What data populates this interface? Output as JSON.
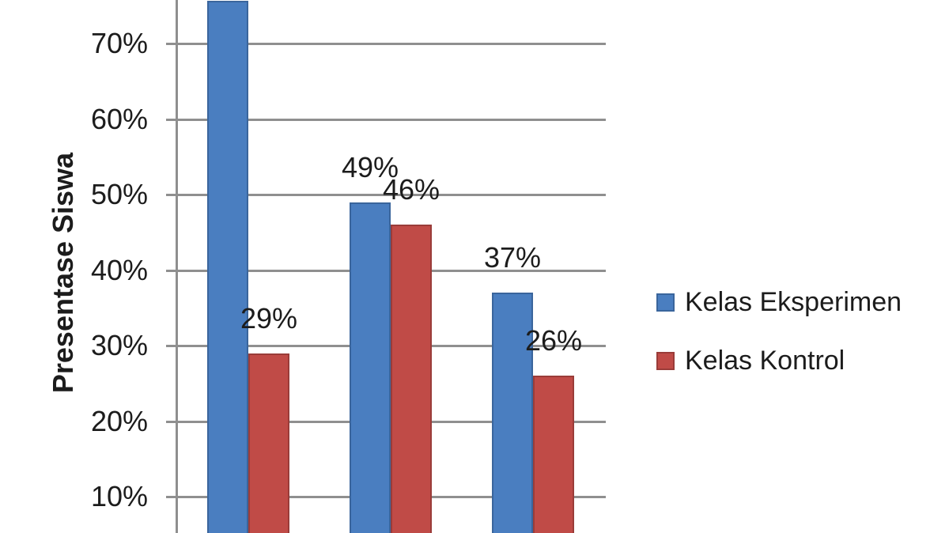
{
  "chart_data": {
    "type": "bar",
    "title": "",
    "ylabel": "Presentase Siswa",
    "xlabel": "",
    "ylim": [
      0,
      80
    ],
    "grid": true,
    "legend_position": "right",
    "categories": [
      "",
      "",
      ""
    ],
    "y_ticks": [
      {
        "value": 10,
        "label": "10%"
      },
      {
        "value": 20,
        "label": "20%"
      },
      {
        "value": 30,
        "label": "30%"
      },
      {
        "value": 40,
        "label": "40%"
      },
      {
        "value": 50,
        "label": "50%"
      },
      {
        "value": 60,
        "label": "60%"
      },
      {
        "value": 70,
        "label": "70%"
      }
    ],
    "series": [
      {
        "name": "Kelas Eksperimen",
        "color": "#4a7ec0",
        "border_color": "#3a659c",
        "values": [
          76,
          49,
          37
        ],
        "data_labels": [
          "",
          "49%",
          "37%"
        ]
      },
      {
        "name": "Kelas Kontrol",
        "color": "#c04b47",
        "border_color": "#9a3c39",
        "values": [
          29,
          46,
          26
        ],
        "data_labels": [
          "29%",
          "46%",
          "26%"
        ]
      }
    ]
  },
  "colors": {
    "background": "#ffffff",
    "gridline": "#8f8f8f",
    "axis_line": "#8f8f8f",
    "text": "#1c1c1c"
  }
}
